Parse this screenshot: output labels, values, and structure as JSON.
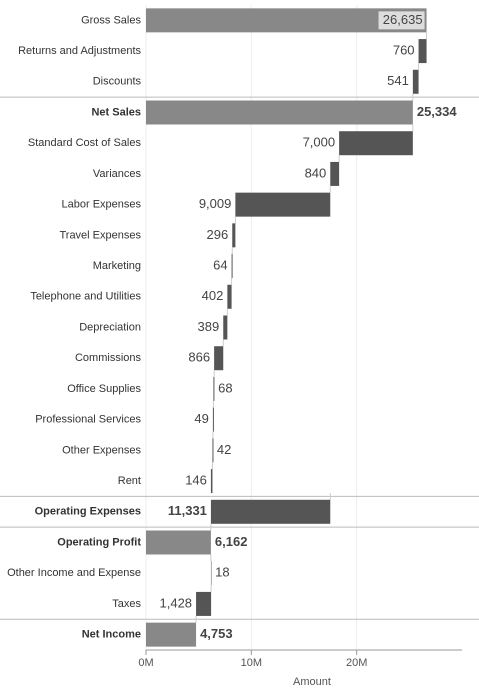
{
  "chart_data": {
    "type": "waterfall",
    "categories": [
      "Gross Sales",
      "Returns and Adjustments",
      "Discounts",
      "Net Sales",
      "Standard Cost of Sales",
      "Variances",
      "Labor Expenses",
      "Travel Expenses",
      "Marketing",
      "Telephone and Utilities",
      "Depreciation",
      "Commissions",
      "Office Supplies",
      "Professional Services",
      "Other Expenses",
      "Rent",
      "Operating Expenses",
      "Operating Profit",
      "Other Income and Expense",
      "Taxes",
      "Net Income"
    ],
    "measure": [
      "absolute",
      "decrease",
      "decrease",
      "total",
      "decrease",
      "decrease",
      "decrease",
      "decrease",
      "decrease",
      "decrease",
      "decrease",
      "decrease",
      "decrease",
      "decrease",
      "decrease",
      "decrease",
      "group",
      "total",
      "increase",
      "decrease",
      "total"
    ],
    "values": [
      26635,
      760,
      541,
      25334,
      7000,
      840,
      9009,
      296,
      64,
      402,
      389,
      866,
      68,
      49,
      42,
      146,
      11331,
      6162,
      18,
      1428,
      4753
    ],
    "value_labels": [
      "26,635",
      "760",
      "541",
      "25,334",
      "7,000",
      "840",
      "9,009",
      "296",
      "64",
      "402",
      "389",
      "866",
      "68",
      "49",
      "42",
      "146",
      "11,331",
      "6,162",
      "18",
      "1,428",
      "4,753"
    ],
    "colors": {
      "total": "#888888",
      "decrease": "#555555",
      "increase": "#aaaaaa"
    },
    "xlabel": "Amount",
    "xlim": [
      0,
      30000
    ],
    "xticks": [
      {
        "value": 0,
        "label": "0M"
      },
      {
        "value": 10000,
        "label": "10M"
      },
      {
        "value": 20000,
        "label": "20M"
      }
    ],
    "grid": true
  }
}
